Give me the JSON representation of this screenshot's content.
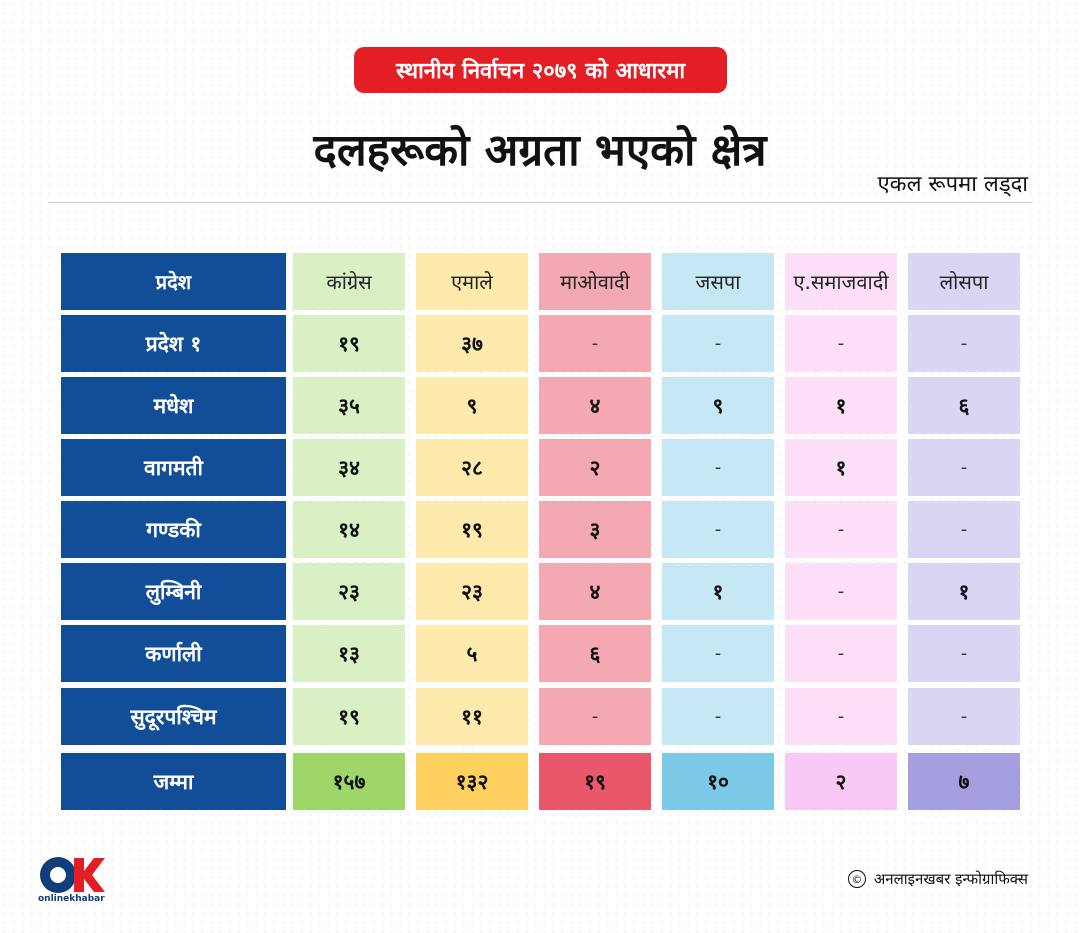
{
  "badge": "स्थानीय निर्वाचन २०७९ को आधारमा",
  "title": "दलहरूको अग्रता भएको क्षेत्र",
  "subtitle": "एकल रूपमा लड्दा",
  "table": {
    "headers": [
      "प्रदेश",
      "कांग्रेस",
      "एमाले",
      "माओवादी",
      "जसपा",
      "ए.समाजवादी",
      "लोसपा"
    ],
    "rows": [
      [
        "प्रदेश १",
        "१९",
        "३७",
        "-",
        "-",
        "-",
        "-"
      ],
      [
        "मधेश",
        "३५",
        "९",
        "४",
        "९",
        "१",
        "६"
      ],
      [
        "वागमती",
        "३४",
        "२८",
        "२",
        "-",
        "१",
        "-"
      ],
      [
        "गण्डकी",
        "१४",
        "१९",
        "३",
        "-",
        "-",
        "-"
      ],
      [
        "लुम्बिनी",
        "२३",
        "२३",
        "४",
        "१",
        "-",
        "१"
      ],
      [
        "कर्णाली",
        "१३",
        "५",
        "६",
        "-",
        "-",
        "-"
      ],
      [
        "सुदूरपश्चिम",
        "१९",
        "११",
        "-",
        "-",
        "-",
        "-"
      ]
    ],
    "total": [
      "जम्मा",
      "१५७",
      "१३२",
      "१९",
      "१०",
      "२",
      "७"
    ]
  },
  "colors": {
    "light": [
      "#124d97",
      "#d8f0c3",
      "#feeaad",
      "#f4a9b2",
      "#c6e8f4",
      "#fde0f8",
      "#d8d6f3"
    ],
    "total": [
      "#124d97",
      "#9fd66a",
      "#fed060",
      "#e9586a",
      "#7ccae8",
      "#f9c8f5",
      "#a59fe0"
    ]
  },
  "logo": {
    "mark": "OK",
    "text": "onlinekhabar"
  },
  "credit": {
    "symbol": "©",
    "text": "अनलाइनखबर इन्फोग्राफिक्स"
  }
}
